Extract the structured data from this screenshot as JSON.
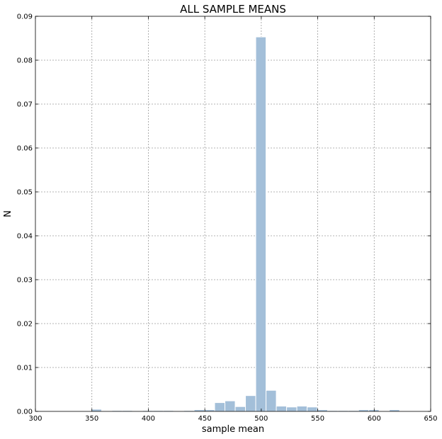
{
  "chart_data": {
    "type": "bar",
    "title": "ALL SAMPLE MEANS",
    "xlabel": "sample mean",
    "ylabel": "N",
    "xlim": [
      300,
      650
    ],
    "ylim": [
      0,
      0.09
    ],
    "xticks": [
      300,
      350,
      400,
      450,
      500,
      550,
      600,
      650
    ],
    "yticks": [
      0.0,
      0.01,
      0.02,
      0.03,
      0.04,
      0.05,
      0.06,
      0.07,
      0.08,
      0.09
    ],
    "xtick_labels": [
      "300",
      "350",
      "400",
      "450",
      "500",
      "550",
      "600",
      "650"
    ],
    "ytick_labels": [
      "0.00",
      "0.01",
      "0.02",
      "0.03",
      "0.04",
      "0.05",
      "0.06",
      "0.07",
      "0.08",
      "0.09"
    ],
    "grid": true,
    "color": "#a3bfd9",
    "bin_width": 9.1,
    "bins": [
      {
        "x0": 349.5,
        "value": 0.0005
      },
      {
        "x0": 367.7,
        "value": 0.0002
      },
      {
        "x0": 376.8,
        "value": 0.0002
      },
      {
        "x0": 395.0,
        "value": 0.0002
      },
      {
        "x0": 404.1,
        "value": 0.0002
      },
      {
        "x0": 413.2,
        "value": 0.0002
      },
      {
        "x0": 431.4,
        "value": 0.0002
      },
      {
        "x0": 440.5,
        "value": 0.0004
      },
      {
        "x0": 449.6,
        "value": 0.0004
      },
      {
        "x0": 458.7,
        "value": 0.002
      },
      {
        "x0": 467.8,
        "value": 0.0024
      },
      {
        "x0": 476.9,
        "value": 0.0011
      },
      {
        "x0": 486.0,
        "value": 0.0036
      },
      {
        "x0": 495.1,
        "value": 0.0853
      },
      {
        "x0": 504.2,
        "value": 0.0048
      },
      {
        "x0": 513.3,
        "value": 0.0012
      },
      {
        "x0": 522.4,
        "value": 0.001
      },
      {
        "x0": 531.5,
        "value": 0.0012
      },
      {
        "x0": 540.6,
        "value": 0.001
      },
      {
        "x0": 549.7,
        "value": 0.0004
      },
      {
        "x0": 558.8,
        "value": 0.0002
      },
      {
        "x0": 567.9,
        "value": 0.0002
      },
      {
        "x0": 577.0,
        "value": 0.0002
      },
      {
        "x0": 586.1,
        "value": 0.0004
      },
      {
        "x0": 595.2,
        "value": 0.0004
      },
      {
        "x0": 613.4,
        "value": 0.0004
      }
    ]
  }
}
